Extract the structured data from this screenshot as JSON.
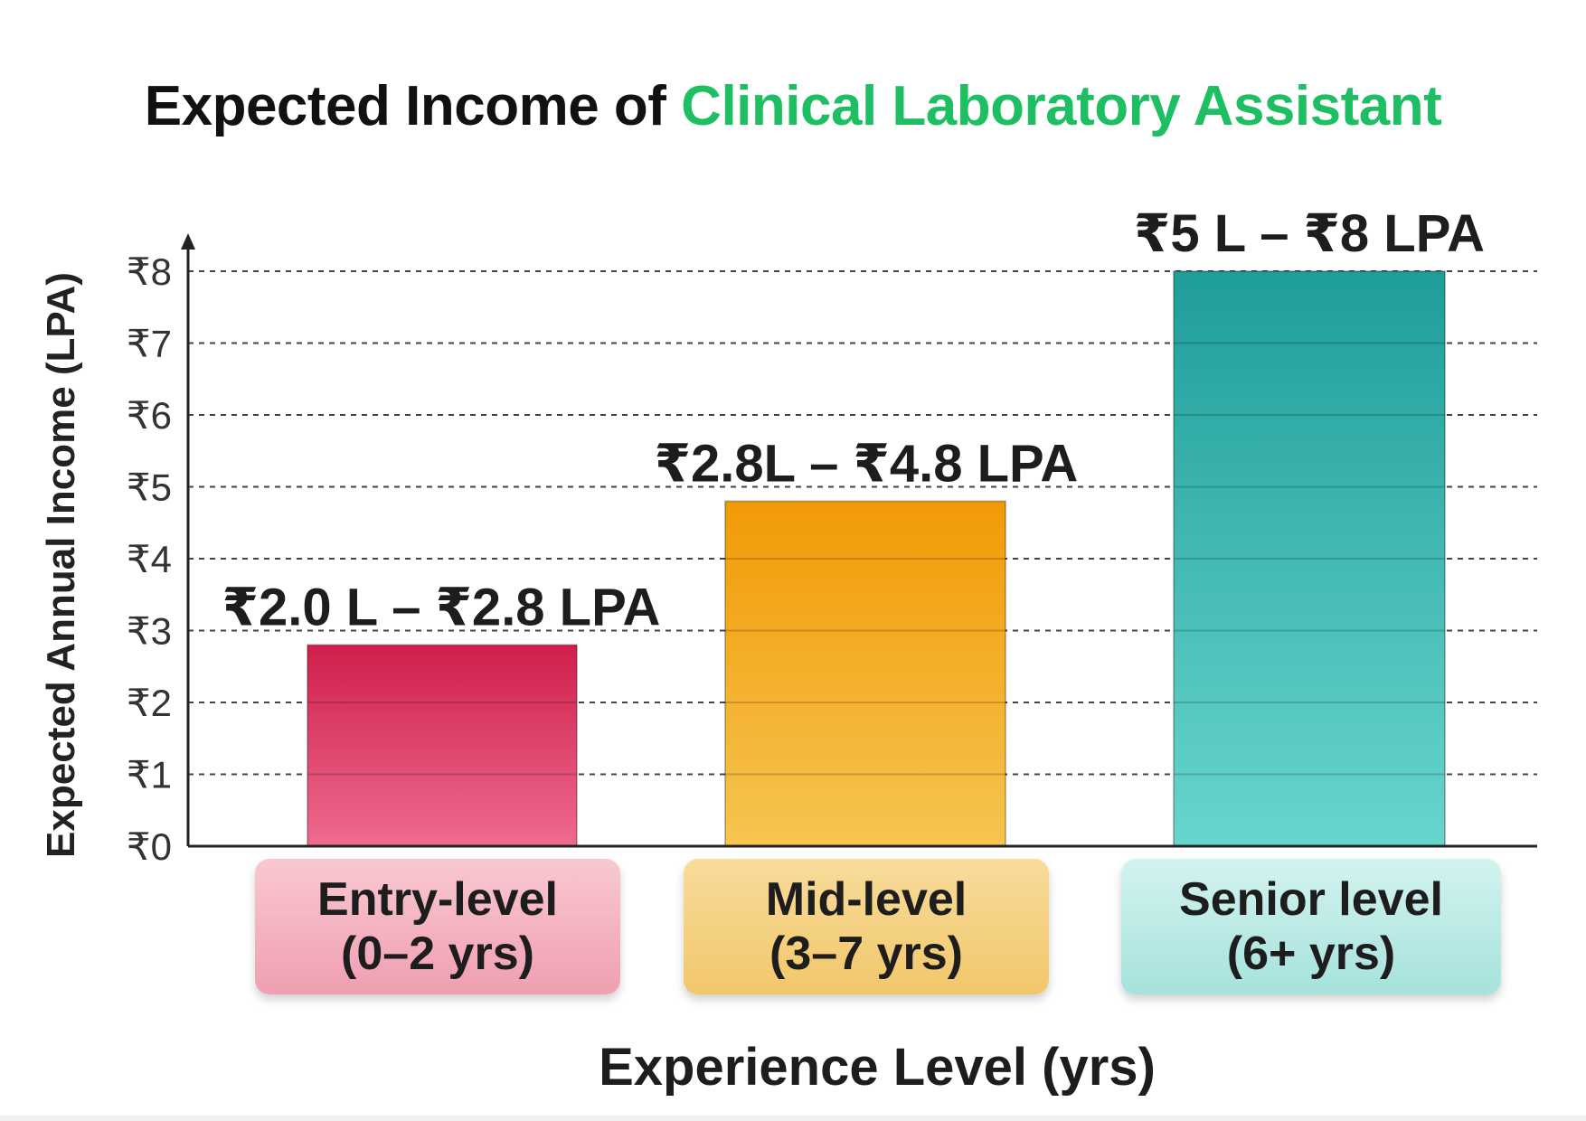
{
  "title": {
    "prefix": "Expected Income of ",
    "highlight": "Clinical Laboratory Assistant",
    "highlight_color": "#1dbf62"
  },
  "chart_data": {
    "type": "bar",
    "title": "Expected Income of Clinical Laboratory Assistant",
    "ylabel": "Expected Annual Income (LPA)",
    "xlabel": "Experience Level (yrs)",
    "ylim": [
      0,
      8
    ],
    "yticks": [
      "₹0",
      "₹1",
      "₹2",
      "₹3",
      "₹4",
      "₹5",
      "₹6",
      "₹7",
      "₹8"
    ],
    "grid": true,
    "categories": [
      {
        "line1": "Entry-level",
        "line2": "(0–2 yrs)"
      },
      {
        "line1": "Mid-level",
        "line2": "(3–7 yrs)"
      },
      {
        "line1": "Senior level",
        "line2": "(6+ yrs)"
      }
    ],
    "values": [
      2.8,
      4.8,
      8.0
    ],
    "range_labels": [
      "₹2.0 L – ₹2.8 LPA",
      "₹2.8L – ₹4.8 LPA",
      "₹5 L – ₹8 LPA"
    ],
    "colors": [
      {
        "top": "#cf1f4b",
        "bottom": "#ee6b8f",
        "label_top": "#f9c8d1",
        "label_bottom": "#ef9fb1"
      },
      {
        "top": "#f19a06",
        "bottom": "#f6c550",
        "label_top": "#f8dc9c",
        "label_bottom": "#f1c76a"
      },
      {
        "top": "#1f9d9a",
        "bottom": "#67d6cd",
        "label_top": "#d3f3ef",
        "label_bottom": "#a6e2dc"
      }
    ]
  }
}
